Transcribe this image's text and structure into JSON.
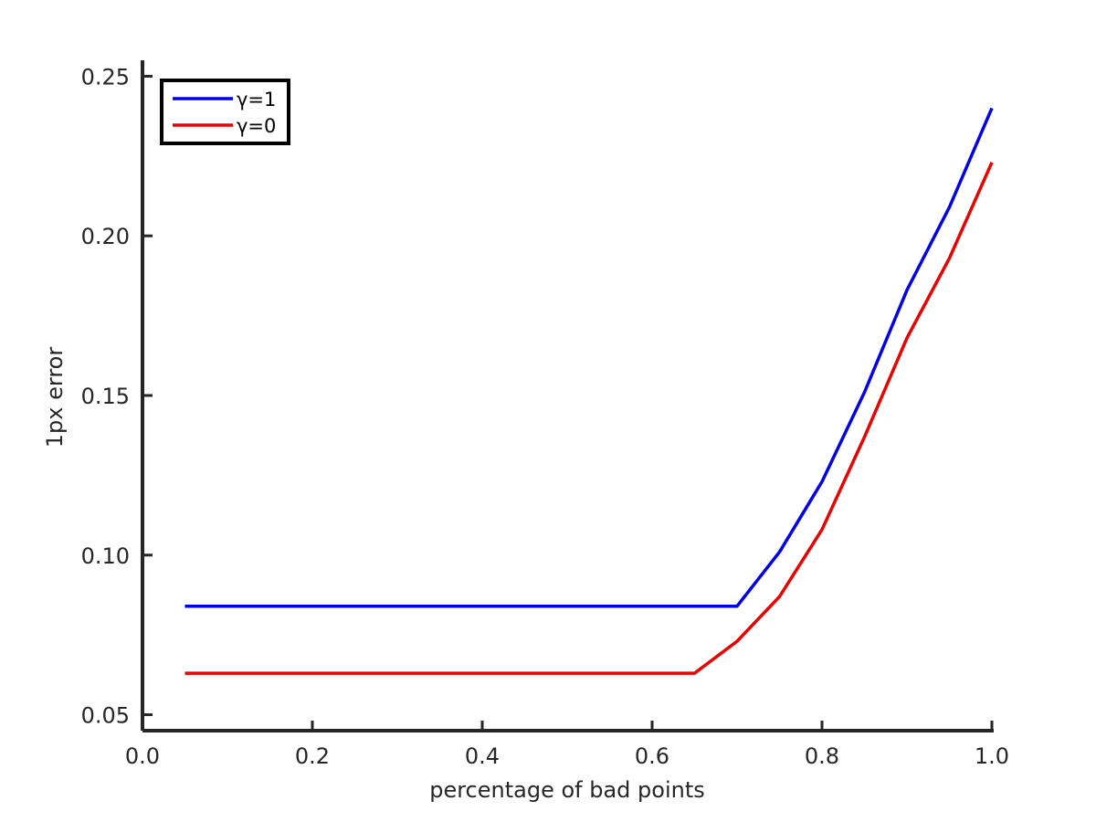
{
  "chart_data": {
    "type": "line",
    "title": "",
    "xlabel": "percentage of bad points",
    "ylabel": "1px error",
    "xlim": [
      0.0,
      1.0
    ],
    "ylim": [
      0.045,
      0.255
    ],
    "xticks": [
      0.0,
      0.2,
      0.4,
      0.6,
      0.8,
      1.0
    ],
    "xtick_labels": [
      "0.0",
      "0.2",
      "0.4",
      "0.6",
      "0.8",
      "1.0"
    ],
    "yticks": [
      0.05,
      0.1,
      0.15,
      0.2,
      0.25
    ],
    "ytick_labels": [
      "0.05",
      "0.10",
      "0.15",
      "0.20",
      "0.25"
    ],
    "grid": false,
    "legend_position": "top-left",
    "x": [
      0.05,
      0.1,
      0.15,
      0.2,
      0.25,
      0.3,
      0.35,
      0.4,
      0.45,
      0.5,
      0.55,
      0.6,
      0.65,
      0.7,
      0.75,
      0.8,
      0.85,
      0.9,
      0.95,
      1.0
    ],
    "series": [
      {
        "name": "γ=1",
        "color": "#0000ee",
        "values": [
          0.084,
          0.084,
          0.084,
          0.084,
          0.084,
          0.084,
          0.084,
          0.084,
          0.084,
          0.084,
          0.084,
          0.084,
          0.084,
          0.084,
          0.101,
          0.123,
          0.151,
          0.183,
          0.209,
          0.24
        ]
      },
      {
        "name": "γ=0",
        "color": "#ee0000",
        "values": [
          0.063,
          0.063,
          0.063,
          0.063,
          0.063,
          0.063,
          0.063,
          0.063,
          0.063,
          0.063,
          0.063,
          0.063,
          0.063,
          0.073,
          0.087,
          0.108,
          0.137,
          0.168,
          0.193,
          0.223
        ]
      }
    ]
  }
}
